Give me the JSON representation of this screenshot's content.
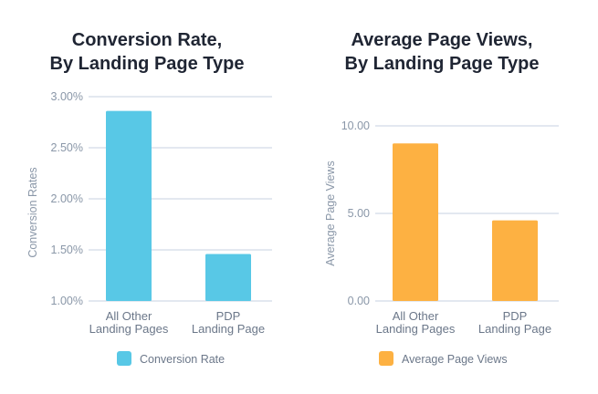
{
  "colors": {
    "conversion": "#58c8e6",
    "pageviews": "#fdb142"
  },
  "chart_data": [
    {
      "type": "bar",
      "title_lines": [
        "Conversion Rate,",
        "By Landing Page Type"
      ],
      "ylabel": "Conversion Rates",
      "ylim": [
        1.0,
        3.0
      ],
      "y_ticks": [
        "1.00%",
        "1.50%",
        "2.00%",
        "2.50%",
        "3.00%"
      ],
      "categories": [
        [
          "All Other",
          "Landing Pages"
        ],
        [
          "PDP",
          "Landing Page"
        ]
      ],
      "series": [
        {
          "name": "Conversion Rate",
          "values": [
            2.86,
            1.46
          ]
        }
      ],
      "legend": "bottom",
      "grid": true
    },
    {
      "type": "bar",
      "title_lines": [
        "Average Page Views,",
        "By Landing Page Type"
      ],
      "ylabel": "Average Page Views",
      "ylim": [
        0,
        10
      ],
      "y_ticks": [
        "0.00",
        "5.00",
        "10.00"
      ],
      "categories": [
        [
          "All Other",
          "Landing Pages"
        ],
        [
          "PDP",
          "Landing Page"
        ]
      ],
      "series": [
        {
          "name": "Average Page Views",
          "values": [
            9.0,
            4.6
          ]
        }
      ],
      "legend": "bottom",
      "grid": true
    }
  ]
}
